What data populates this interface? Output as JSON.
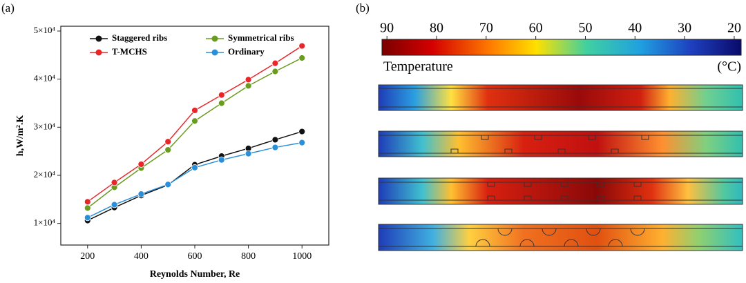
{
  "panel_labels": [
    "(a)",
    "(b)"
  ],
  "chart_data": {
    "type": "line",
    "x_label": "Reynolds Number, Re",
    "y_label": "h,W/m².K",
    "x": [
      200,
      300,
      400,
      500,
      600,
      700,
      800,
      900,
      1000
    ],
    "xlim": [
      100,
      1100
    ],
    "xticks": [
      200,
      400,
      600,
      800,
      1000
    ],
    "ylim": [
      5500,
      51000
    ],
    "yticks": [
      {
        "value": 10000,
        "label": "1×10⁴"
      },
      {
        "value": 20000,
        "label": "2×10⁴"
      },
      {
        "value": 30000,
        "label": "3×10⁴"
      },
      {
        "value": 40000,
        "label": "4×10⁴"
      },
      {
        "value": 50000,
        "label": "5×10⁴"
      }
    ],
    "grid": false,
    "legend": "upper left",
    "series": [
      {
        "name": "Staggered ribs",
        "color": "#111111",
        "values": [
          10600,
          13300,
          15800,
          18000,
          22200,
          24000,
          25600,
          27400,
          29100
        ]
      },
      {
        "name": "Symmetrical ribs",
        "color": "#6a9a1f",
        "values": [
          13200,
          17500,
          21500,
          25300,
          31300,
          35000,
          38600,
          41600,
          44400
        ]
      },
      {
        "name": "T-MCHS",
        "color": "#e8262a",
        "values": [
          14500,
          18500,
          22300,
          27000,
          33500,
          36700,
          39900,
          43300,
          46900
        ]
      },
      {
        "name": "Ordinary",
        "color": "#2a8fd8",
        "values": [
          11200,
          13900,
          16100,
          18100,
          21600,
          23200,
          24500,
          25800,
          26800
        ]
      }
    ]
  },
  "colorbar": {
    "ticks": [
      90,
      80,
      70,
      60,
      50,
      40,
      30,
      20
    ],
    "clim": [
      91,
      18.6
    ],
    "label": "Temperature",
    "unit": "(°C)"
  }
}
